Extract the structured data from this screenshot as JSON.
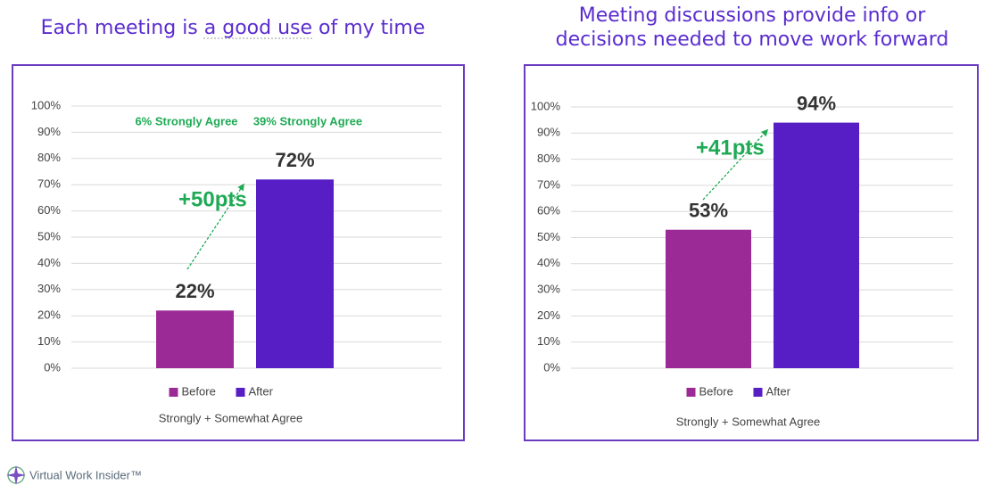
{
  "chart_data": [
    {
      "type": "bar",
      "title": [
        "Each meeting is a good use of my time"
      ],
      "categories": [
        null
      ],
      "series": [
        {
          "name": "Before",
          "color": "#9b2a96",
          "values": [
            22
          ],
          "value_labels": [
            "22%"
          ]
        },
        {
          "name": "After",
          "color": "#571ec6",
          "values": [
            72
          ],
          "value_labels": [
            "72%"
          ]
        }
      ],
      "x_label": "Strongly + Somewhat Agree",
      "annotations": [
        "+50pts",
        "6% Strongly Agree",
        "39% Strongly Agree"
      ],
      "ylim": [
        0,
        100
      ],
      "yticks": [
        {
          "value": 0,
          "label": "0%"
        },
        {
          "value": 10,
          "label": "10%"
        },
        {
          "value": 20,
          "label": "20%"
        },
        {
          "value": 30,
          "label": "30%"
        },
        {
          "value": 40,
          "label": "40%"
        },
        {
          "value": 50,
          "label": "50%"
        },
        {
          "value": 60,
          "label": "60%"
        },
        {
          "value": 70,
          "label": "70%"
        },
        {
          "value": 80,
          "label": "80%"
        },
        {
          "value": 90,
          "label": "90%"
        },
        {
          "value": 100,
          "label": "100%"
        }
      ],
      "grid": true,
      "legend": "bottom"
    },
    {
      "type": "bar",
      "title": [
        "Meeting discussions provide info or",
        "decisions needed to move work forward"
      ],
      "categories": [
        null
      ],
      "series": [
        {
          "name": "Before",
          "color": "#9b2a96",
          "values": [
            53
          ],
          "value_labels": [
            "53%"
          ]
        },
        {
          "name": "After",
          "color": "#571ec6",
          "values": [
            94
          ],
          "value_labels": [
            "94%"
          ]
        }
      ],
      "x_label": "Strongly + Somewhat Agree",
      "annotations": [
        "+41pts"
      ],
      "ylim": [
        0,
        100
      ],
      "yticks": [
        {
          "value": 0,
          "label": "0%"
        },
        {
          "value": 10,
          "label": "10%"
        },
        {
          "value": 20,
          "label": "20%"
        },
        {
          "value": 30,
          "label": "30%"
        },
        {
          "value": 40,
          "label": "40%"
        },
        {
          "value": 50,
          "label": "50%"
        },
        {
          "value": 60,
          "label": "60%"
        },
        {
          "value": 70,
          "label": "70%"
        },
        {
          "value": 80,
          "label": "80%"
        },
        {
          "value": 90,
          "label": "90%"
        },
        {
          "value": 100,
          "label": "100%"
        }
      ],
      "grid": true,
      "legend": "bottom"
    }
  ],
  "logo": "Virtual Work Insider™"
}
